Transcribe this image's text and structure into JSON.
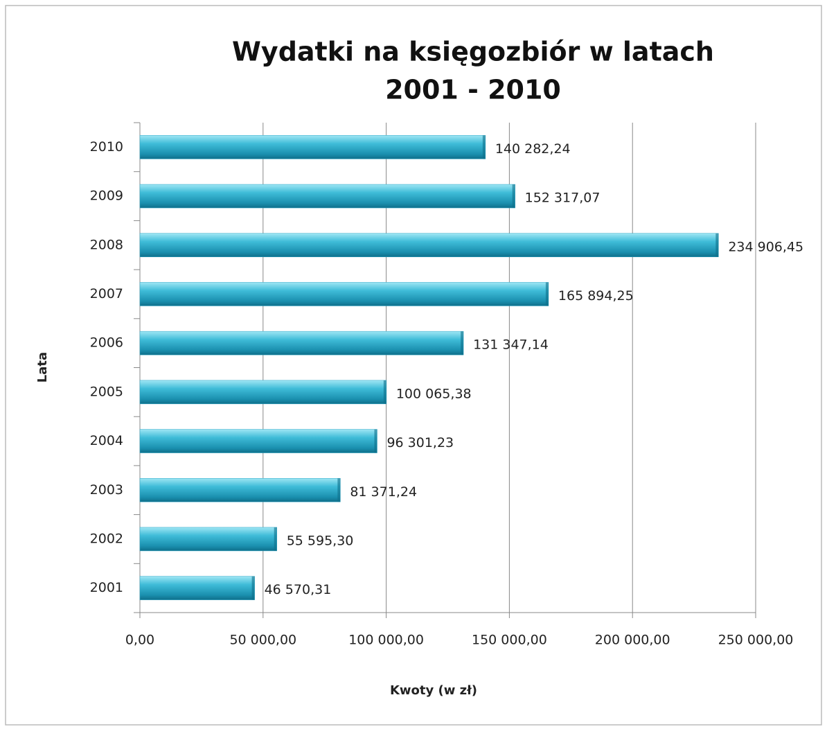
{
  "chart_data": {
    "type": "bar",
    "orientation": "horizontal",
    "title": [
      "Wydatki na księgozbiór w latach",
      "2001 - 2010"
    ],
    "x_label": "Kwoty (w zł)",
    "y_label": "Lata",
    "categories": [
      "2001",
      "2002",
      "2003",
      "2004",
      "2005",
      "2006",
      "2007",
      "2008",
      "2009",
      "2010"
    ],
    "values": [
      46570.31,
      55595.3,
      81371.24,
      96301.23,
      100065.38,
      131347.14,
      165894.25,
      234906.45,
      152317.07,
      140282.24
    ],
    "value_labels": [
      "46 570,31",
      "55 595,30",
      "81 371,24",
      "96 301,23",
      "100 065,38",
      "131 347,14",
      "165 894,25",
      "234 906,45",
      "152 317,07",
      "140 282,24"
    ],
    "color": "#2aa6c6",
    "xlim": [
      0,
      250000
    ],
    "xticks": [
      {
        "value": 0,
        "label": "0,00"
      },
      {
        "value": 50000,
        "label": "50 000,00"
      },
      {
        "value": 100000,
        "label": "100 000,00"
      },
      {
        "value": 150000,
        "label": "150 000,00"
      },
      {
        "value": 200000,
        "label": "200 000,00"
      },
      {
        "value": 250000,
        "label": "250 000,00"
      }
    ],
    "grid": true
  }
}
